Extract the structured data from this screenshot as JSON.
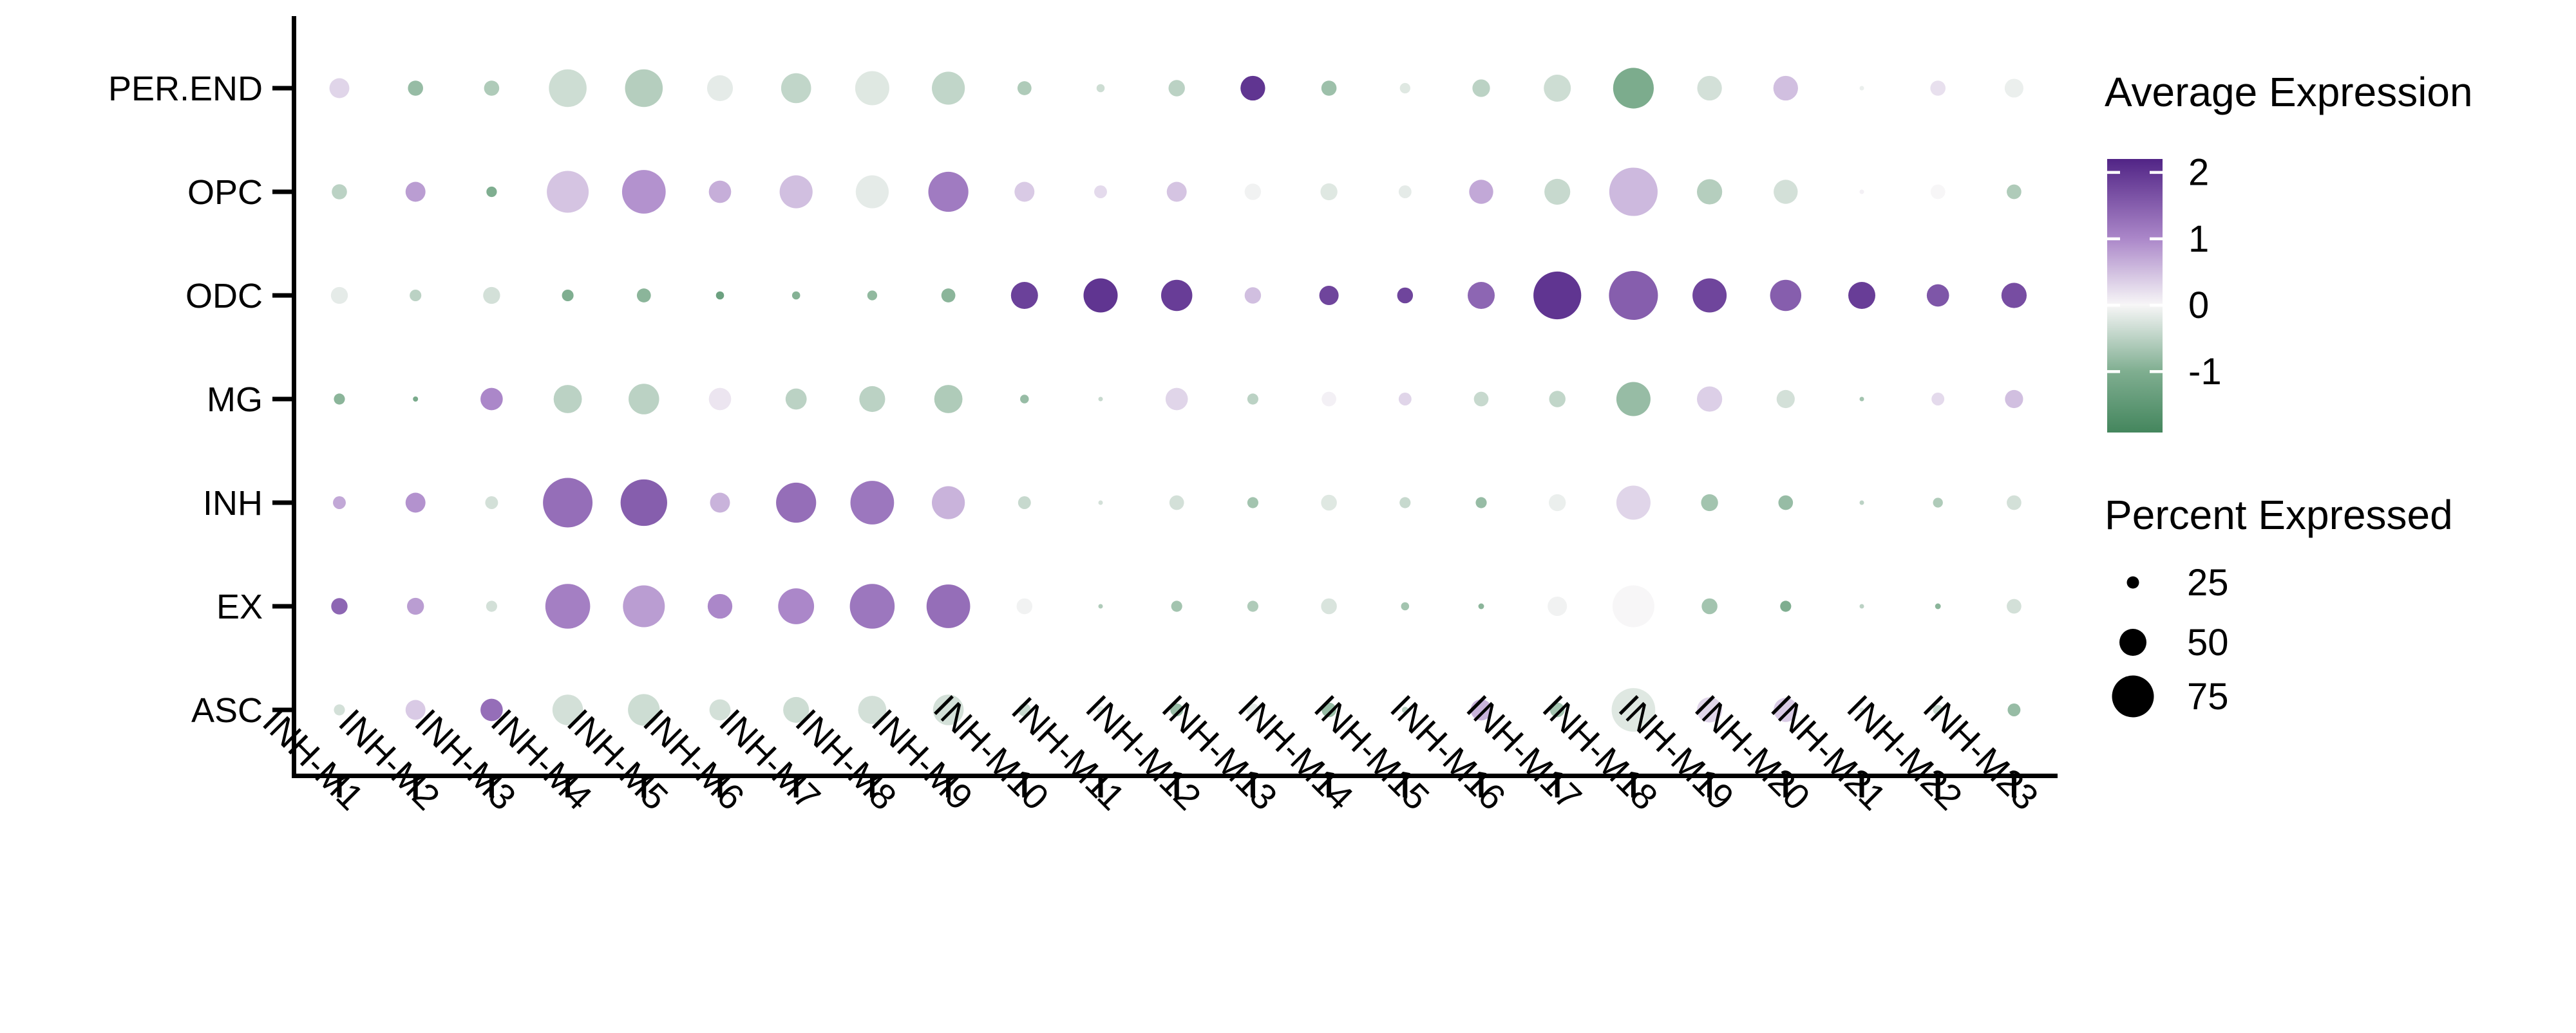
{
  "figure": {
    "background": "#ffffff",
    "accent_purple": "#512486",
    "accent_green": "#3f8259"
  },
  "chart_data": {
    "type": "scatter",
    "subtype": "dot-plot-bubble-matrix",
    "title": "",
    "xlabel": "",
    "ylabel": "",
    "grid": false,
    "x_categories": [
      "INH-M1",
      "INH-M2",
      "INH-M3",
      "INH-M4",
      "INH-M5",
      "INH-M6",
      "INH-M7",
      "INH-M8",
      "INH-M9",
      "INH-M10",
      "INH-M11",
      "INH-M12",
      "INH-M13",
      "INH-M14",
      "INH-M15",
      "INH-M16",
      "INH-M17",
      "INH-M18",
      "INH-M19",
      "INH-M20",
      "INH-M21",
      "INH-M22",
      "INH-M23"
    ],
    "y_categories": [
      "PER.END",
      "OPC",
      "ODC",
      "MG",
      "INH",
      "EX",
      "ASC"
    ],
    "point_encoding": {
      "size": "percent_expressed",
      "color": "average_expression"
    },
    "rows": [
      {
        "label": "PER.END",
        "dots": [
          [
            38,
            0.3
          ],
          [
            30,
            -0.8
          ],
          [
            30,
            -0.6
          ],
          [
            68,
            -0.35
          ],
          [
            68,
            -0.55
          ],
          [
            48,
            -0.15
          ],
          [
            55,
            -0.45
          ],
          [
            62,
            -0.2
          ],
          [
            60,
            -0.45
          ],
          [
            28,
            -0.6
          ],
          [
            18,
            -0.35
          ],
          [
            32,
            -0.5
          ],
          [
            46,
            2.0
          ],
          [
            30,
            -0.75
          ],
          [
            22,
            -0.2
          ],
          [
            34,
            -0.5
          ],
          [
            50,
            -0.35
          ],
          [
            73,
            -1.05
          ],
          [
            46,
            -0.3
          ],
          [
            46,
            0.5
          ],
          [
            8,
            -0.1
          ],
          [
            30,
            0.2
          ],
          [
            36,
            -0.1
          ]
        ]
      },
      {
        "label": "OPC",
        "dots": [
          [
            30,
            -0.5
          ],
          [
            38,
            0.8
          ],
          [
            22,
            -1.0
          ],
          [
            75,
            0.45
          ],
          [
            78,
            0.9
          ],
          [
            42,
            0.65
          ],
          [
            60,
            0.5
          ],
          [
            60,
            -0.15
          ],
          [
            72,
            1.15
          ],
          [
            38,
            0.4
          ],
          [
            26,
            0.25
          ],
          [
            38,
            0.45
          ],
          [
            32,
            -0.05
          ],
          [
            33,
            -0.2
          ],
          [
            26,
            -0.15
          ],
          [
            45,
            0.7
          ],
          [
            48,
            -0.4
          ],
          [
            86,
            0.55
          ],
          [
            47,
            -0.55
          ],
          [
            45,
            -0.3
          ],
          [
            12,
            0.05
          ],
          [
            29,
            0.0
          ],
          [
            29,
            -0.6
          ]
        ]
      },
      {
        "label": "ODC",
        "dots": [
          [
            33,
            -0.15
          ],
          [
            24,
            -0.5
          ],
          [
            33,
            -0.3
          ],
          [
            24,
            -1.0
          ],
          [
            28,
            -0.9
          ],
          [
            18,
            -1.3
          ],
          [
            18,
            -0.95
          ],
          [
            21,
            -0.85
          ],
          [
            28,
            -0.9
          ],
          [
            50,
            1.85
          ],
          [
            62,
            2.0
          ],
          [
            57,
            1.9
          ],
          [
            32,
            0.5
          ],
          [
            37,
            1.8
          ],
          [
            31,
            1.8
          ],
          [
            50,
            1.4
          ],
          [
            85,
            2.0
          ],
          [
            87,
            1.5
          ],
          [
            62,
            1.8
          ],
          [
            57,
            1.5
          ],
          [
            50,
            1.9
          ],
          [
            42,
            1.6
          ],
          [
            47,
            1.7
          ]
        ]
      },
      {
        "label": "MG",
        "dots": [
          [
            23,
            -0.9
          ],
          [
            13,
            -1.1
          ],
          [
            42,
            1.0
          ],
          [
            52,
            -0.5
          ],
          [
            56,
            -0.5
          ],
          [
            42,
            0.15
          ],
          [
            40,
            -0.5
          ],
          [
            48,
            -0.5
          ],
          [
            52,
            -0.6
          ],
          [
            19,
            -0.8
          ],
          [
            11,
            -0.4
          ],
          [
            42,
            0.3
          ],
          [
            23,
            -0.5
          ],
          [
            29,
            0.05
          ],
          [
            26,
            0.3
          ],
          [
            29,
            -0.4
          ],
          [
            32,
            -0.45
          ],
          [
            62,
            -0.8
          ],
          [
            47,
            0.35
          ],
          [
            35,
            -0.3
          ],
          [
            6,
            -0.7
          ],
          [
            26,
            0.25
          ],
          [
            35,
            0.5
          ]
        ]
      },
      {
        "label": "INH",
        "dots": [
          [
            26,
            0.7
          ],
          [
            38,
            0.9
          ],
          [
            26,
            -0.3
          ],
          [
            88,
            1.3
          ],
          [
            83,
            1.5
          ],
          [
            38,
            0.6
          ],
          [
            72,
            1.3
          ],
          [
            78,
            1.2
          ],
          [
            60,
            0.6
          ],
          [
            26,
            -0.4
          ],
          [
            11,
            -0.3
          ],
          [
            29,
            -0.3
          ],
          [
            23,
            -0.7
          ],
          [
            31,
            -0.2
          ],
          [
            23,
            -0.4
          ],
          [
            23,
            -0.8
          ],
          [
            33,
            -0.1
          ],
          [
            62,
            0.3
          ],
          [
            33,
            -0.7
          ],
          [
            29,
            -0.8
          ],
          [
            5,
            -0.5
          ],
          [
            21,
            -0.6
          ],
          [
            29,
            -0.3
          ]
        ]
      },
      {
        "label": "EX",
        "dots": [
          [
            32,
            1.4
          ],
          [
            33,
            0.8
          ],
          [
            23,
            -0.3
          ],
          [
            80,
            1.1
          ],
          [
            75,
            0.8
          ],
          [
            46,
            1.0
          ],
          [
            65,
            1.0
          ],
          [
            80,
            1.2
          ],
          [
            78,
            1.3
          ],
          [
            31,
            -0.05
          ],
          [
            8,
            -0.6
          ],
          [
            23,
            -0.7
          ],
          [
            23,
            -0.6
          ],
          [
            31,
            -0.25
          ],
          [
            18,
            -0.7
          ],
          [
            14,
            -0.9
          ],
          [
            37,
            -0.05
          ],
          [
            75,
            0.0
          ],
          [
            31,
            -0.7
          ],
          [
            23,
            -1.0
          ],
          [
            5,
            -0.5
          ],
          [
            14,
            -0.9
          ],
          [
            29,
            -0.3
          ]
        ]
      },
      {
        "label": "ASC",
        "dots": [
          [
            23,
            -0.3
          ],
          [
            38,
            0.4
          ],
          [
            42,
            1.3
          ],
          [
            56,
            -0.3
          ],
          [
            58,
            -0.35
          ],
          [
            40,
            -0.3
          ],
          [
            48,
            -0.35
          ],
          [
            52,
            -0.3
          ],
          [
            56,
            -0.3
          ],
          [
            26,
            -0.4
          ],
          [
            16,
            -0.2
          ],
          [
            26,
            -0.8
          ],
          [
            26,
            -0.15
          ],
          [
            29,
            -0.8
          ],
          [
            15,
            -0.5
          ],
          [
            40,
            0.6
          ],
          [
            29,
            -0.7
          ],
          [
            78,
            -0.2
          ],
          [
            47,
            0.3
          ],
          [
            45,
            0.4
          ],
          [
            6,
            -0.3
          ],
          [
            21,
            -0.4
          ],
          [
            26,
            -0.8
          ]
        ]
      }
    ],
    "legend": {
      "color": {
        "title": "Average Expression",
        "tick_labels": [
          "2",
          "1",
          "0",
          "-1"
        ],
        "tick_values": [
          2,
          1,
          0,
          -1
        ],
        "domain_top": 2.2,
        "domain_bottom": -1.92,
        "stops": [
          {
            "v": -2.0,
            "c": "#3f8259"
          },
          {
            "v": -1.0,
            "c": "#7fae90"
          },
          {
            "v": 0.0,
            "c": "#f7f6f7"
          },
          {
            "v": 1.0,
            "c": "#ab87c9"
          },
          {
            "v": 2.2,
            "c": "#512486"
          }
        ]
      },
      "size": {
        "title": "Percent Expressed",
        "tick_labels": [
          "25",
          "50",
          "75"
        ],
        "tick_values": [
          25,
          50,
          75
        ],
        "dot_color": "#000000"
      }
    }
  }
}
